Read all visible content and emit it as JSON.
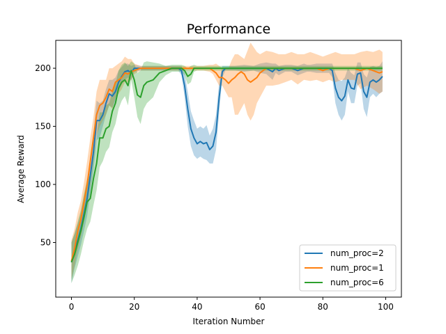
{
  "chart_data": {
    "type": "line",
    "title": "Performance",
    "xlabel": "Iteration Number",
    "ylabel": "Average Reward",
    "xlim": [
      -5,
      105
    ],
    "ylim": [
      3,
      224
    ],
    "xticks": [
      0,
      20,
      40,
      60,
      80,
      100
    ],
    "yticks": [
      50,
      100,
      150,
      200
    ],
    "grid": false,
    "legend_position": "lower-right",
    "series": [
      {
        "name": "num_proc=2",
        "color": "#1f77b4",
        "x": [
          0,
          1,
          2,
          3,
          4,
          5,
          6,
          7,
          8,
          9,
          10,
          11,
          12,
          13,
          14,
          15,
          16,
          17,
          18,
          19,
          20,
          22,
          25,
          28,
          30,
          32,
          33,
          34,
          35,
          36,
          37,
          38,
          39,
          40,
          41,
          42,
          43,
          44,
          45,
          46,
          47,
          48,
          49,
          50,
          52,
          55,
          58,
          60,
          62,
          64,
          65,
          66,
          68,
          70,
          72,
          74,
          75,
          76,
          78,
          80,
          82,
          83,
          84,
          85,
          86,
          87,
          88,
          89,
          90,
          91,
          92,
          93,
          94,
          95,
          96,
          97,
          98,
          99
        ],
        "y": [
          33,
          43,
          52,
          62,
          75,
          88,
          108,
          128,
          155,
          155,
          160,
          170,
          178,
          176,
          180,
          188,
          193,
          197,
          198,
          196,
          200,
          200,
          200,
          200,
          200,
          200,
          200,
          200,
          198,
          185,
          165,
          148,
          140,
          135,
          137,
          135,
          136,
          130,
          133,
          145,
          175,
          197,
          200,
          200,
          200,
          200,
          200,
          200,
          200,
          197,
          200,
          198,
          200,
          200,
          198,
          200,
          200,
          200,
          200,
          200,
          200,
          198,
          183,
          175,
          172,
          176,
          190,
          183,
          182,
          195,
          196,
          180,
          175,
          188,
          190,
          188,
          190,
          193
        ],
        "lower": [
          15,
          28,
          38,
          48,
          60,
          73,
          92,
          112,
          138,
          140,
          150,
          160,
          168,
          166,
          172,
          180,
          186,
          190,
          192,
          190,
          197,
          198,
          198,
          198,
          198,
          198,
          198,
          198,
          194,
          175,
          150,
          133,
          125,
          122,
          124,
          122,
          121,
          118,
          118,
          130,
          162,
          192,
          198,
          198,
          198,
          197,
          198,
          196,
          195,
          190,
          196,
          194,
          197,
          197,
          194,
          196,
          197,
          197,
          196,
          196,
          196,
          192,
          170,
          160,
          155,
          160,
          180,
          170,
          170,
          185,
          187,
          165,
          158,
          175,
          178,
          175,
          178,
          180
        ],
        "upper": [
          50,
          58,
          66,
          76,
          90,
          103,
          124,
          144,
          172,
          170,
          172,
          182,
          190,
          190,
          192,
          198,
          201,
          204,
          204,
          202,
          203,
          202,
          202,
          202,
          202,
          202,
          202,
          202,
          202,
          196,
          180,
          163,
          155,
          148,
          150,
          148,
          151,
          142,
          148,
          160,
          188,
          202,
          202,
          202,
          202,
          203,
          202,
          204,
          205,
          204,
          204,
          202,
          203,
          203,
          202,
          204,
          203,
          203,
          204,
          204,
          204,
          204,
          196,
          190,
          189,
          192,
          200,
          196,
          194,
          205,
          205,
          195,
          192,
          201,
          202,
          201,
          202,
          206
        ]
      },
      {
        "name": "num_proc=1",
        "color": "#ff7f0e",
        "x": [
          0,
          1,
          2,
          3,
          4,
          5,
          6,
          7,
          8,
          9,
          10,
          11,
          12,
          13,
          14,
          15,
          16,
          17,
          18,
          19,
          20,
          22,
          25,
          28,
          30,
          32,
          34,
          35,
          36,
          37,
          38,
          39,
          40,
          42,
          44,
          45,
          46,
          47,
          48,
          49,
          50,
          51,
          52,
          53,
          54,
          55,
          56,
          57,
          58,
          59,
          60,
          62,
          64,
          66,
          68,
          70,
          72,
          74,
          76,
          78,
          80,
          82,
          84,
          86,
          88,
          90,
          92,
          94,
          96,
          98,
          99
        ],
        "y": [
          34,
          45,
          60,
          70,
          85,
          100,
          120,
          140,
          160,
          168,
          170,
          175,
          182,
          180,
          188,
          190,
          192,
          196,
          195,
          197,
          198,
          200,
          200,
          200,
          200,
          200,
          200,
          200,
          200,
          200,
          200,
          200,
          200,
          200,
          200,
          198,
          196,
          192,
          192,
          190,
          187,
          190,
          192,
          195,
          197,
          195,
          190,
          188,
          190,
          192,
          196,
          200,
          200,
          200,
          200,
          200,
          200,
          200,
          200,
          200,
          198,
          200,
          200,
          200,
          200,
          200,
          198,
          200,
          198,
          196,
          197
        ],
        "lower": [
          18,
          30,
          44,
          55,
          68,
          82,
          100,
          120,
          142,
          150,
          155,
          160,
          168,
          165,
          175,
          178,
          182,
          188,
          188,
          190,
          195,
          198,
          198,
          198,
          198,
          198,
          198,
          198,
          198,
          198,
          198,
          198,
          198,
          198,
          197,
          195,
          190,
          185,
          185,
          180,
          175,
          175,
          160,
          160,
          165,
          170,
          160,
          155,
          160,
          170,
          175,
          185,
          185,
          186,
          188,
          190,
          186,
          190,
          189,
          190,
          188,
          190,
          188,
          190,
          190,
          190,
          182,
          185,
          182,
          178,
          180
        ],
        "upper": [
          52,
          62,
          76,
          86,
          102,
          120,
          140,
          158,
          180,
          190,
          190,
          190,
          200,
          200,
          202,
          204,
          206,
          210,
          208,
          208,
          204,
          202,
          202,
          202,
          202,
          202,
          202,
          202,
          202,
          202,
          202,
          202,
          202,
          202,
          203,
          203,
          204,
          202,
          200,
          200,
          200,
          207,
          212,
          212,
          210,
          208,
          215,
          222,
          218,
          214,
          212,
          215,
          214,
          212,
          212,
          214,
          212,
          212,
          214,
          212,
          210,
          212,
          214,
          212,
          212,
          212,
          214,
          215,
          214,
          216,
          214
        ]
      },
      {
        "name": "num_proc=6",
        "color": "#2ca02c",
        "x": [
          0,
          1,
          2,
          3,
          4,
          5,
          6,
          7,
          8,
          9,
          10,
          11,
          12,
          13,
          14,
          15,
          16,
          17,
          18,
          19,
          20,
          21,
          22,
          23,
          24,
          26,
          28,
          30,
          32,
          34,
          35,
          36,
          37,
          38,
          39,
          40,
          42,
          44,
          46,
          48,
          50,
          55,
          60,
          65,
          70,
          75,
          80,
          85,
          90,
          95,
          99
        ],
        "y": [
          33,
          40,
          50,
          60,
          72,
          85,
          88,
          105,
          118,
          140,
          140,
          148,
          150,
          163,
          170,
          183,
          188,
          190,
          185,
          198,
          190,
          177,
          175,
          185,
          188,
          190,
          196,
          198,
          200,
          200,
          200,
          198,
          193,
          195,
          200,
          200,
          200,
          200,
          200,
          200,
          200,
          200,
          200,
          200,
          200,
          200,
          200,
          200,
          200,
          200,
          200
        ],
        "lower": [
          15,
          22,
          30,
          40,
          52,
          62,
          68,
          82,
          95,
          115,
          120,
          128,
          132,
          145,
          152,
          165,
          172,
          176,
          168,
          190,
          175,
          158,
          152,
          165,
          170,
          175,
          188,
          194,
          197,
          197,
          197,
          194,
          186,
          188,
          197,
          198,
          198,
          198,
          198,
          198,
          198,
          198,
          198,
          198,
          198,
          198,
          198,
          198,
          198,
          198,
          198
        ],
        "upper": [
          50,
          58,
          68,
          78,
          92,
          105,
          108,
          125,
          140,
          162,
          162,
          168,
          170,
          180,
          186,
          198,
          203,
          205,
          202,
          206,
          204,
          196,
          198,
          205,
          206,
          205,
          204,
          202,
          203,
          203,
          203,
          202,
          200,
          202,
          203,
          202,
          202,
          202,
          202,
          202,
          202,
          202,
          202,
          202,
          202,
          202,
          202,
          202,
          202,
          202,
          202
        ]
      }
    ]
  }
}
